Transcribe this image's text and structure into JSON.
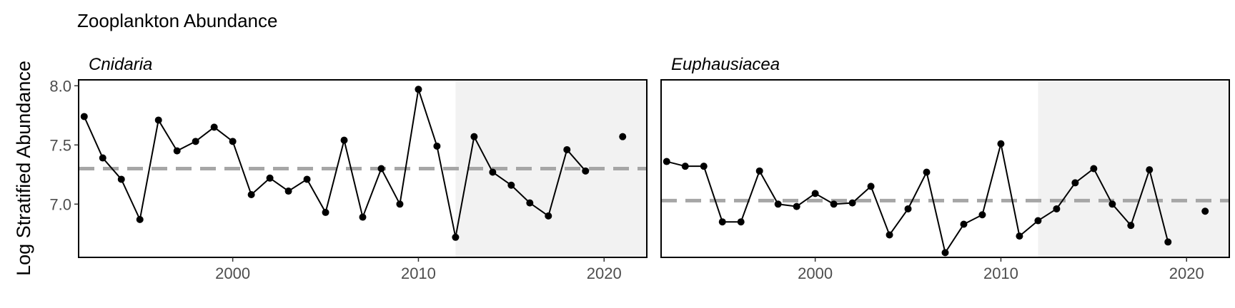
{
  "chart_data": {
    "type": "line",
    "title": "Zooplankton Abundance",
    "ylabel": "Log Stratified Abundance",
    "xlabel": "",
    "ylim": [
      6.55,
      8.05
    ],
    "yticks": [
      7.0,
      7.5,
      8.0
    ],
    "ytick_labels": [
      "7.0",
      "7.5",
      "8.0"
    ],
    "xlim": [
      1991.7,
      2022.3
    ],
    "xticks": [
      2000,
      2010,
      2020
    ],
    "xtick_labels": [
      "2000",
      "2010",
      "2020"
    ],
    "grid": false,
    "shaded_period": [
      2012,
      2022.3
    ],
    "colors": {
      "line": "#000000",
      "mean": "#a6a6a6",
      "shade": "#f2f2f2",
      "frame": "#000000"
    },
    "panels": [
      {
        "name": "Cnidaria",
        "mean": 7.3,
        "x": [
          1992,
          1993,
          1994,
          1995,
          1996,
          1997,
          1998,
          1999,
          2000,
          2001,
          2002,
          2003,
          2004,
          2005,
          2006,
          2007,
          2008,
          2009,
          2010,
          2011,
          2012,
          2013,
          2014,
          2015,
          2016,
          2017,
          2018,
          2019,
          2021
        ],
        "y": [
          7.74,
          7.39,
          7.21,
          6.87,
          7.71,
          7.45,
          7.53,
          7.65,
          7.53,
          7.08,
          7.22,
          7.11,
          7.21,
          6.93,
          7.54,
          6.89,
          7.3,
          7.0,
          7.97,
          7.49,
          6.72,
          7.57,
          7.27,
          7.16,
          7.01,
          6.9,
          7.46,
          7.28,
          7.57
        ]
      },
      {
        "name": "Euphausiacea",
        "mean": 7.03,
        "x": [
          1992,
          1993,
          1994,
          1995,
          1996,
          1997,
          1998,
          1999,
          2000,
          2001,
          2002,
          2003,
          2004,
          2005,
          2006,
          2007,
          2008,
          2009,
          2010,
          2011,
          2012,
          2013,
          2014,
          2015,
          2016,
          2017,
          2018,
          2019,
          2021
        ],
        "y": [
          7.36,
          7.32,
          7.32,
          6.85,
          6.85,
          7.28,
          7.0,
          6.98,
          7.09,
          7.0,
          7.01,
          7.15,
          6.74,
          6.96,
          7.27,
          6.59,
          6.83,
          6.91,
          7.51,
          6.73,
          6.86,
          6.96,
          7.18,
          7.3,
          7.0,
          6.82,
          7.29,
          6.68,
          6.94
        ]
      }
    ]
  }
}
